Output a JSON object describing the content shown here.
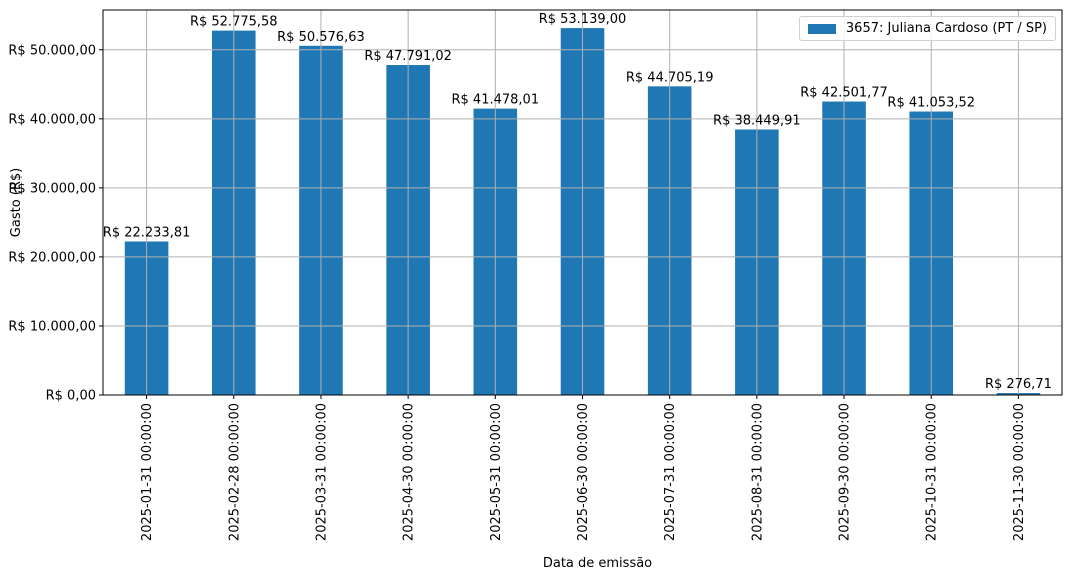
{
  "chart_data": {
    "type": "bar",
    "title": "",
    "xlabel": "Data de emissão",
    "ylabel": "Gasto (R$)",
    "ylim": [
      0,
      55760
    ],
    "grid": true,
    "legend_position": "upper right",
    "categories": [
      "2025-01-31 00:00:00",
      "2025-02-28 00:00:00",
      "2025-03-31 00:00:00",
      "2025-04-30 00:00:00",
      "2025-05-31 00:00:00",
      "2025-06-30 00:00:00",
      "2025-07-31 00:00:00",
      "2025-08-31 00:00:00",
      "2025-09-30 00:00:00",
      "2025-10-31 00:00:00",
      "2025-11-30 00:00:00"
    ],
    "series": [
      {
        "name": "3657: Juliana Cardoso (PT / SP)",
        "color": "#1f77b4",
        "values": [
          22233.81,
          52775.58,
          50576.63,
          47791.02,
          41478.01,
          53139.0,
          44705.19,
          38449.91,
          42501.77,
          41053.52,
          276.71
        ],
        "data_labels": [
          "R$ 22.233,81",
          "R$ 52.775,58",
          "R$ 50.576,63",
          "R$ 47.791,02",
          "R$ 41.478,01",
          "R$ 53.139,00",
          "R$ 44.705,19",
          "R$ 38.449,91",
          "R$ 42.501,77",
          "R$ 41.053,52",
          "R$ 276,71"
        ]
      }
    ],
    "yticks": [
      0,
      10000,
      20000,
      30000,
      40000,
      50000
    ],
    "ytick_labels": [
      "R$ 0,00",
      "R$ 10.000,00",
      "R$ 20.000,00",
      "R$ 30.000,00",
      "R$ 40.000,00",
      "R$ 50.000,00"
    ]
  },
  "legend": {
    "label": "3657: Juliana Cardoso (PT / SP)",
    "color": "#1f77b4"
  },
  "colors": {
    "bar": "#1f77b4",
    "grid": "#b0b0b0",
    "axis": "#000000"
  }
}
